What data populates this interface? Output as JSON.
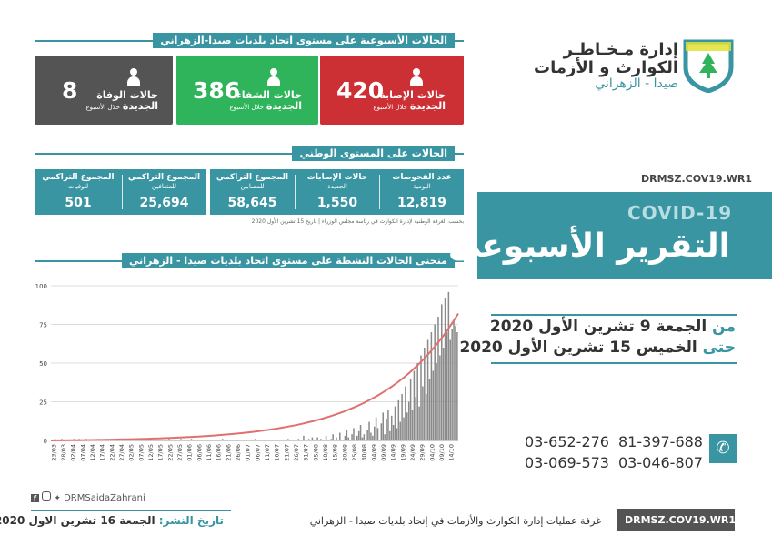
{
  "org": {
    "line1": "إدارة مـخـاطـر",
    "line2": "الكوارث و الأزمات",
    "line3": "صيدا - الزهراني"
  },
  "report": {
    "code": "DRMSZ.COV19.WR1",
    "covid_label": "COVID-19",
    "title": "التقرير الأسبوعي",
    "from_prefix": "من",
    "from_date": "الجمعة 9 تشرين الأول 2020",
    "to_prefix": "حتى",
    "to_date": "الخميس 15 تشرين الأول 2020"
  },
  "weekly": {
    "header": "الحالات الأسبوعية على مستوى اتحاد بلديات صيدا-الزهراني",
    "cards": [
      {
        "label": "حالات الإصابة",
        "label2": "الجديدة",
        "sub": "خلال الأسبوع",
        "value": "420",
        "color": "#cc3035"
      },
      {
        "label": "حالات الشفاء",
        "label2": "الجديدة",
        "sub": "خلال الأسبوع",
        "value": "386",
        "color": "#2fb45c"
      },
      {
        "label": "حالات الوفاة",
        "label2": "الجديدة",
        "sub": "خلال الأسبوع",
        "value": "8",
        "color": "#545454"
      }
    ]
  },
  "national": {
    "header": "الحالات على المستوى الوطني",
    "stats": [
      {
        "title": "عدد الفحوصات",
        "sub": "اليومية",
        "value": "12,819"
      },
      {
        "title": "حالات الإصابات",
        "sub": "الجديدة",
        "value": "1,550"
      },
      {
        "title": "المجموع التراكمي",
        "sub": "للمصابين",
        "value": "58,645"
      },
      {
        "title": "المجموع التراكمي",
        "sub": "للمتعافين",
        "value": "25,694"
      },
      {
        "title": "المجموع التراكمي",
        "sub": "للوفيات",
        "value": "501"
      }
    ],
    "source": "بحسب الغرفة الوطنية لإدارة الكوارث في رئاسة مجلس الوزراء | تاريخ 15 تشرين الأول 2020"
  },
  "curve": {
    "header": "منحنى الحالات النشطة على مستوى اتحاد بلديات صيدا - الزهراني"
  },
  "chart_data": {
    "type": "bar",
    "title": "منحنى الحالات النشطة على مستوى اتحاد بلديات صيدا - الزهراني",
    "ylim": [
      0,
      100
    ],
    "yticks": [
      0,
      25,
      50,
      75,
      100
    ],
    "grid": true,
    "date_labels": [
      "23/03",
      "28/03",
      "02/04",
      "07/04",
      "12/04",
      "17/04",
      "22/04",
      "27/04",
      "02/05",
      "07/05",
      "12/05",
      "17/05",
      "22/05",
      "27/05",
      "01/06",
      "06/06",
      "11/06",
      "16/06",
      "21/06",
      "26/06",
      "01/07",
      "06/07",
      "11/07",
      "16/07",
      "21/07",
      "26/07",
      "31/07",
      "05/08",
      "10/08",
      "15/08",
      "20/08",
      "25/08",
      "30/08",
      "04/09",
      "09/09",
      "14/09",
      "19/09",
      "24/09",
      "29/09",
      "04/10",
      "09/10",
      "14/10"
    ],
    "values": [
      0,
      0,
      1,
      0,
      0,
      0,
      1,
      0,
      0,
      0,
      0,
      0,
      0,
      1,
      0,
      0,
      1,
      0,
      0,
      0,
      1,
      0,
      0,
      0,
      0,
      0,
      0,
      1,
      0,
      0,
      0,
      0,
      1,
      0,
      0,
      0,
      0,
      0,
      0,
      0,
      0,
      0,
      0,
      0,
      0,
      0,
      0,
      0,
      0,
      0,
      0,
      0,
      0,
      0,
      0,
      0,
      0,
      0,
      0,
      0,
      0,
      0,
      0,
      0,
      0,
      0,
      0,
      0,
      1,
      0,
      0,
      0,
      0,
      0,
      0,
      1,
      0,
      0,
      0,
      0,
      0,
      1,
      0,
      0,
      0,
      0,
      0,
      0,
      0,
      0,
      0,
      0,
      0,
      0,
      0,
      0,
      0,
      0,
      0,
      1,
      0,
      0,
      0,
      0,
      0,
      0,
      0,
      0,
      0,
      0,
      0,
      0,
      0,
      0,
      0,
      0,
      0,
      0,
      1,
      0,
      0,
      0,
      0,
      0,
      0,
      0,
      0,
      0,
      0,
      0,
      0,
      0,
      0,
      0,
      0,
      0,
      0,
      1,
      0,
      0,
      0,
      0,
      0,
      1,
      0,
      0,
      3,
      0,
      0,
      1,
      0,
      2,
      0,
      0,
      2,
      0,
      1,
      0,
      0,
      3,
      0,
      0,
      1,
      4,
      0,
      2,
      0,
      5,
      0,
      0,
      3,
      7,
      2,
      0,
      4,
      8,
      0,
      3,
      6,
      10,
      2,
      4,
      0,
      7,
      12,
      5,
      3,
      9,
      15,
      8,
      0,
      11,
      18,
      4,
      14,
      20,
      6,
      16,
      10,
      22,
      8,
      26,
      12,
      30,
      15,
      35,
      18,
      25,
      40,
      20,
      45,
      28,
      50,
      22,
      55,
      35,
      60,
      30,
      65,
      40,
      70,
      45,
      75,
      50,
      80,
      55,
      88,
      60,
      92,
      70,
      96,
      65,
      72,
      78,
      74,
      70
    ],
    "trend": {
      "name": "trend",
      "start": 0,
      "end": 82
    }
  },
  "footer": {
    "social_handle": "DRMSaidaZahrani",
    "publish_label": "تاريخ النشر:",
    "publish_date": "الجمعة 16 تشرين الاول 2020",
    "ops_room": "غرفة عمليات إدارة الكوارث والأزمات في إتحاد بلديات صيدا - الزهراني",
    "code": "DRMSZ.COV19.WR1"
  },
  "phones": [
    "81-397-688",
    "03-652-276",
    "03-046-807",
    "03-069-573"
  ],
  "colors": {
    "accent": "#3a95a2",
    "red": "#cc3035",
    "green": "#2fb45c",
    "gray": "#545454",
    "bar": "#8a8a8a",
    "trend": "#e07070"
  }
}
